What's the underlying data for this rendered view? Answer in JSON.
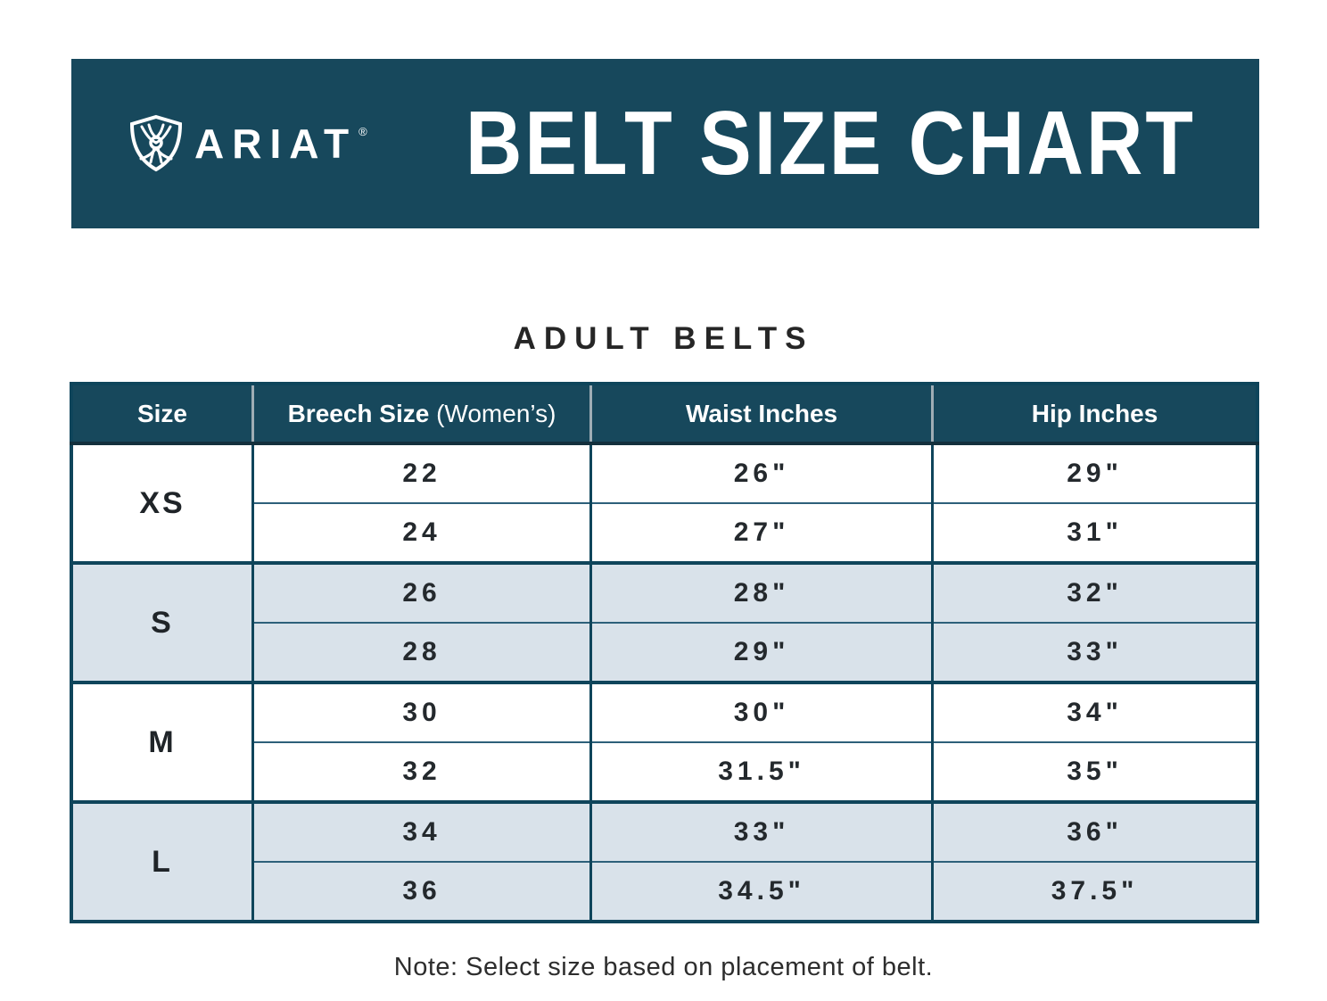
{
  "banner": {
    "brand": "ARIAT",
    "registered_mark": "®",
    "title": "BELT SIZE CHART",
    "logo_icon": "ariat-shield-logo",
    "bg_color": "#17485c",
    "text_color": "#ffffff"
  },
  "section_title": "ADULT BELTS",
  "table": {
    "columns": [
      {
        "label": "Size",
        "sub": ""
      },
      {
        "label": "Breech Size",
        "sub": " (Women’s)"
      },
      {
        "label": "Waist Inches",
        "sub": ""
      },
      {
        "label": "Hip Inches",
        "sub": ""
      }
    ],
    "groups": [
      {
        "size": "XS",
        "shaded": false,
        "rows": [
          {
            "breech": "22",
            "waist": "26\"",
            "hip": "29\""
          },
          {
            "breech": "24",
            "waist": "27\"",
            "hip": "31\""
          }
        ]
      },
      {
        "size": "S",
        "shaded": true,
        "rows": [
          {
            "breech": "26",
            "waist": "28\"",
            "hip": "32\""
          },
          {
            "breech": "28",
            "waist": "29\"",
            "hip": "33\""
          }
        ]
      },
      {
        "size": "M",
        "shaded": false,
        "rows": [
          {
            "breech": "30",
            "waist": "30\"",
            "hip": "34\""
          },
          {
            "breech": "32",
            "waist": "31.5\"",
            "hip": "35\""
          }
        ]
      },
      {
        "size": "L",
        "shaded": true,
        "rows": [
          {
            "breech": "34",
            "waist": "33\"",
            "hip": "36\""
          },
          {
            "breech": "36",
            "waist": "34.5\"",
            "hip": "37.5\""
          }
        ]
      }
    ],
    "stripe_color": "#d9e2ea",
    "border_color": "#0f455b",
    "header_bg": "#17485c"
  },
  "note": "Note: Select size based on placement of belt.",
  "chart_data": {
    "type": "table",
    "title": "BELT SIZE CHART",
    "subtitle": "ADULT BELTS",
    "columns": [
      "Size",
      "Breech Size (Women’s)",
      "Waist Inches",
      "Hip Inches"
    ],
    "rows": [
      [
        "XS",
        "22",
        "26\"",
        "29\""
      ],
      [
        "XS",
        "24",
        "27\"",
        "31\""
      ],
      [
        "S",
        "26",
        "28\"",
        "32\""
      ],
      [
        "S",
        "28",
        "29\"",
        "33\""
      ],
      [
        "M",
        "30",
        "30\"",
        "34\""
      ],
      [
        "M",
        "32",
        "31.5\"",
        "35\""
      ],
      [
        "L",
        "34",
        "33\"",
        "36\""
      ],
      [
        "L",
        "36",
        "34.5\"",
        "37.5\""
      ]
    ],
    "footnote": "Note: Select size based on placement of belt."
  }
}
